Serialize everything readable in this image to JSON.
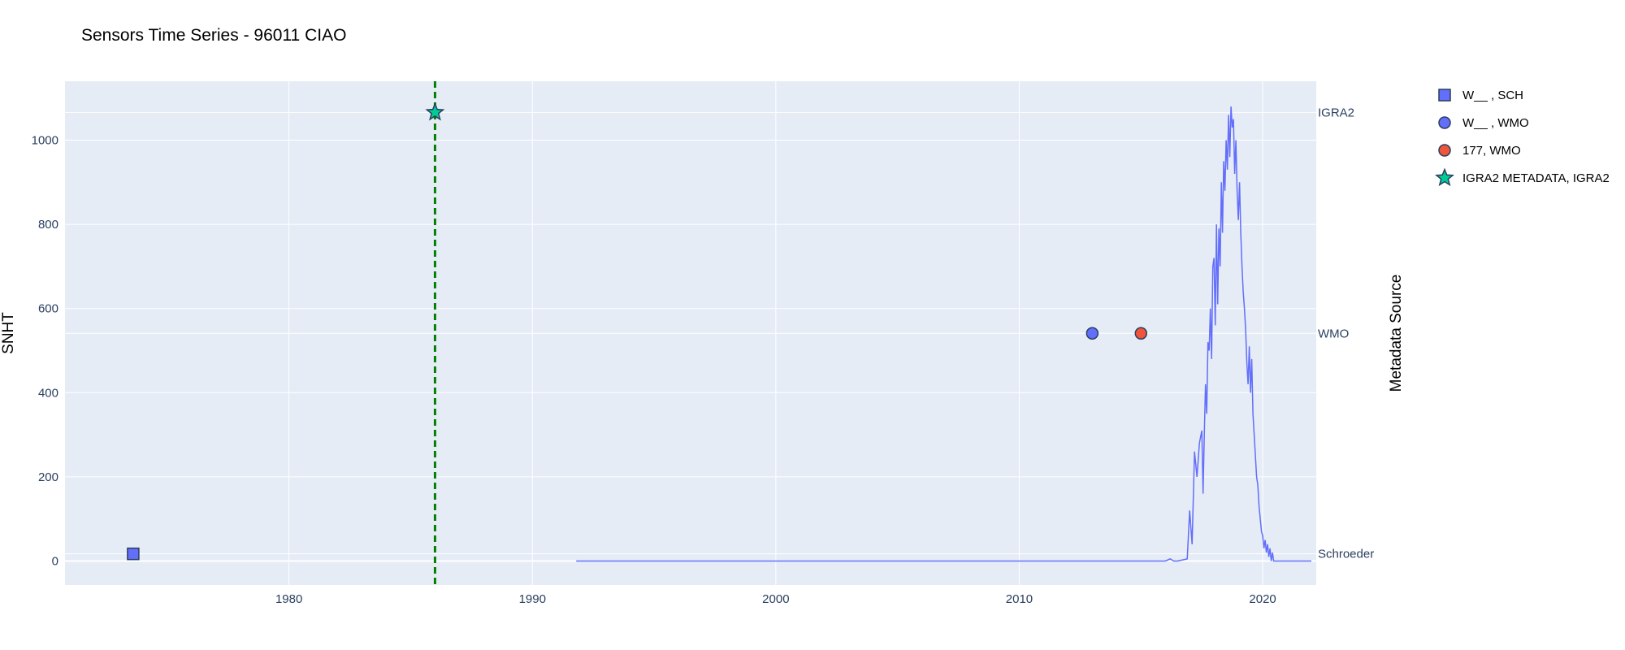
{
  "chart_data": {
    "type": "line",
    "title": "Sensors Time Series - 96011 CIAO",
    "ylabel": "SNHT",
    "y2label": "Metadata Source",
    "xlim": [
      1970.8,
      2022.2
    ],
    "ylim": [
      -57,
      1140
    ],
    "x_ticks": [
      1980,
      1990,
      2000,
      2010,
      2020
    ],
    "y_ticks": [
      0,
      200,
      400,
      600,
      800,
      1000
    ],
    "y2_categories": [
      "Schroeder",
      "WMO",
      "IGRA2"
    ],
    "y2_values": [
      17,
      541,
      1066
    ],
    "grid": true,
    "legend_position": "right",
    "colors": {
      "plot_bg": "#e5ecf6",
      "line": "#636efa",
      "blue": "#636efa",
      "red": "#ef553b",
      "green": "#00cc96",
      "vline": "#008000"
    },
    "vline_x": 1986,
    "legend": [
      {
        "label": "W__ , SCH",
        "symbol": "square",
        "color": "#636efa"
      },
      {
        "label": "W__ , WMO",
        "symbol": "circle",
        "color": "#636efa"
      },
      {
        "label": "177, WMO",
        "symbol": "circle",
        "color": "#ef553b"
      },
      {
        "label": "IGRA2 METADATA, IGRA2",
        "symbol": "star",
        "color": "#00cc96"
      }
    ],
    "markers": [
      {
        "x": 1973.6,
        "category": "Schroeder",
        "symbol": "square",
        "color": "#636efa"
      },
      {
        "x": 2013.0,
        "category": "WMO",
        "symbol": "circle",
        "color": "#636efa"
      },
      {
        "x": 2015.0,
        "category": "WMO",
        "symbol": "circle",
        "color": "#ef553b"
      },
      {
        "x": 1986.0,
        "category": "IGRA2",
        "symbol": "star",
        "color": "#00cc96"
      }
    ],
    "series": [
      {
        "x": [
          1991.8,
          2016.0,
          2016.2,
          2016.35,
          2016.5,
          2016.9,
          2017.0,
          2017.1,
          2017.2,
          2017.3,
          2017.4,
          2017.5,
          2017.55,
          2017.6,
          2017.65,
          2017.7,
          2017.75,
          2017.8,
          2017.85,
          2017.9,
          2017.95,
          2018.0,
          2018.05,
          2018.1,
          2018.15,
          2018.2,
          2018.25,
          2018.3,
          2018.35,
          2018.4,
          2018.45,
          2018.5,
          2018.55,
          2018.6,
          2018.65,
          2018.7,
          2018.75,
          2018.8,
          2018.85,
          2018.9,
          2018.95,
          2019.0,
          2019.05,
          2019.1,
          2019.15,
          2019.2,
          2019.25,
          2019.3,
          2019.35,
          2019.4,
          2019.45,
          2019.5,
          2019.55,
          2019.6,
          2019.65,
          2019.7,
          2019.75,
          2019.8,
          2019.85,
          2019.9,
          2019.95,
          2020.0,
          2020.05,
          2020.1,
          2020.15,
          2020.2,
          2020.25,
          2020.3,
          2020.35,
          2020.4,
          2020.45,
          2020.5,
          2020.6,
          2020.7,
          2020.8,
          2020.9,
          2021.0,
          2021.5,
          2022.0
        ],
        "y": [
          0,
          0,
          5,
          0,
          0,
          5,
          120,
          40,
          260,
          200,
          280,
          310,
          160,
          300,
          420,
          350,
          520,
          500,
          600,
          480,
          700,
          720,
          560,
          800,
          610,
          790,
          700,
          900,
          780,
          950,
          880,
          1000,
          930,
          1060,
          960,
          1080,
          1030,
          1050,
          920,
          1000,
          880,
          810,
          900,
          780,
          700,
          640,
          600,
          550,
          470,
          420,
          510,
          400,
          480,
          350,
          300,
          250,
          200,
          180,
          130,
          100,
          70,
          60,
          30,
          50,
          20,
          40,
          10,
          30,
          0,
          20,
          0,
          0,
          0,
          0,
          0,
          0,
          0,
          0,
          0
        ]
      }
    ]
  }
}
